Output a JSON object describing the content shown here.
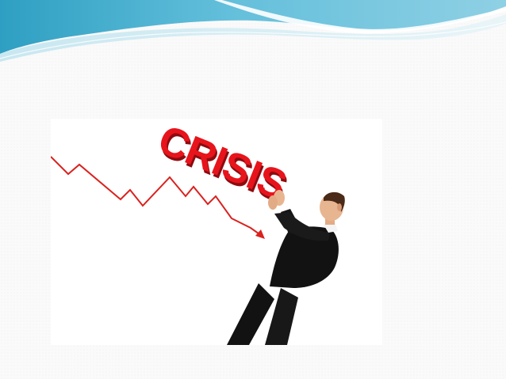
{
  "slide": {
    "illustration": {
      "sign_text": "CRISIS",
      "description_icon": "businessman-pushing-crisis-icon"
    }
  },
  "colors": {
    "wave_dark": "#3aa9c9",
    "wave_light": "#9fd6e6",
    "wave_pale": "#d8eef5",
    "background": "#fafafa",
    "crisis_red": "#e8141c",
    "arrow_red": "#d9221e",
    "suit": "#121212",
    "skin": "#e8b591"
  }
}
